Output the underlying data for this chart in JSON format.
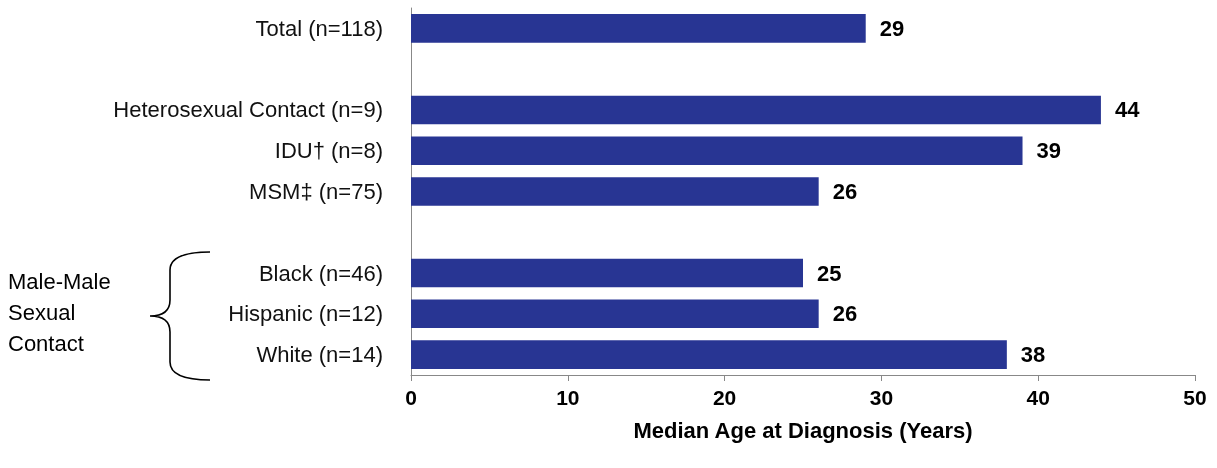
{
  "chart_data": {
    "type": "bar",
    "orientation": "horizontal",
    "categories": [
      "Total (n=118)",
      null,
      "Heterosexual Contact (n=9)",
      "IDU† (n=8)",
      "MSM‡ (n=75)",
      null,
      "Black (n=46)",
      "Hispanic (n=12)",
      "White (n=14)"
    ],
    "values": [
      29,
      null,
      44,
      39,
      26,
      null,
      25,
      26,
      38
    ],
    "color": "#283593",
    "xlim": [
      0,
      50
    ],
    "xticks": [
      0,
      10,
      20,
      30,
      40,
      50
    ],
    "xlabel": "Median Age at Diagnosis (Years)",
    "data_labels": true,
    "annotations": [
      "Male-Male Sexual Contact"
    ]
  }
}
